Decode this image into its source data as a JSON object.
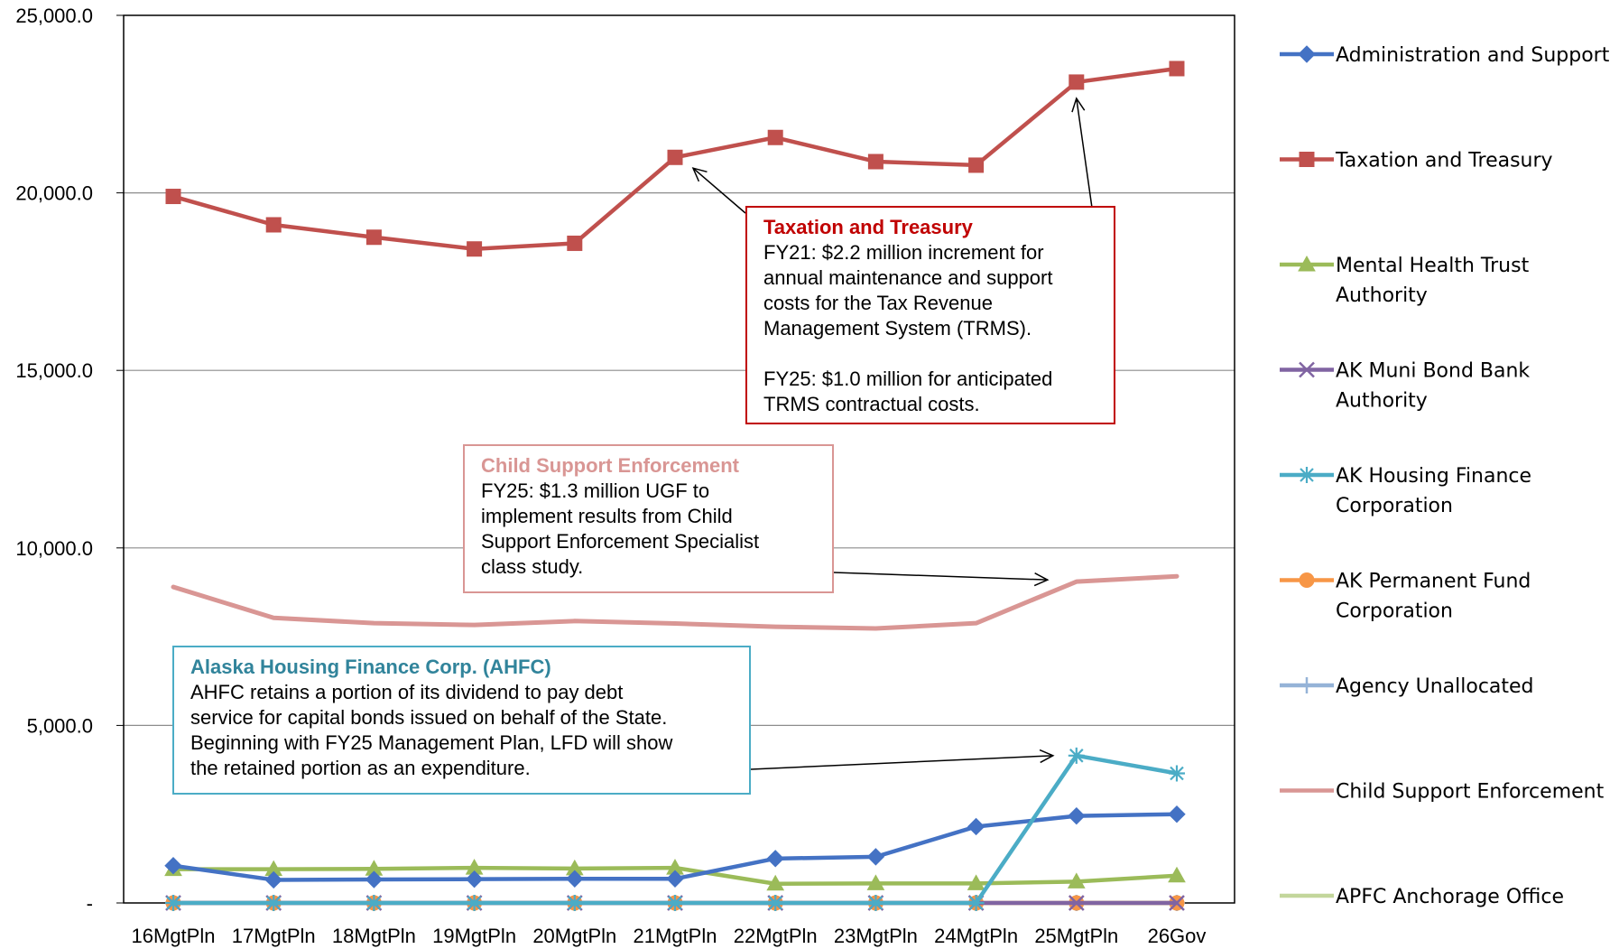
{
  "chart_data": {
    "type": "line",
    "categories": [
      "16MgtPln",
      "17MgtPln",
      "18MgtPln",
      "19MgtPln",
      "20MgtPln",
      "21MgtPln",
      "22MgtPln",
      "23MgtPln",
      "24MgtPln",
      "25MgtPln",
      "26Gov"
    ],
    "ylim": [
      0,
      25000
    ],
    "yticks": [
      {
        "value": 0,
        "label": "-"
      },
      {
        "value": 5000,
        "label": "5,000.0"
      },
      {
        "value": 10000,
        "label": "10,000.0"
      },
      {
        "value": 15000,
        "label": "15,000.0"
      },
      {
        "value": 20000,
        "label": "20,000.0"
      },
      {
        "value": 25000,
        "label": "25,000.0"
      }
    ],
    "grid": true,
    "legend_position": "right",
    "series": [
      {
        "name": "Administration and Support",
        "color": "#4472C4",
        "marker": "diamond",
        "values": [
          1050,
          650,
          660,
          670,
          680,
          680,
          1250,
          1300,
          2150,
          2450,
          2500
        ]
      },
      {
        "name": "Taxation and Treasury",
        "color": "#C0504D",
        "marker": "square",
        "values": [
          19900,
          19100,
          18750,
          18420,
          18580,
          21000,
          21560,
          20880,
          20780,
          23120,
          23500
        ]
      },
      {
        "name": "Mental Health Trust Authority",
        "color": "#9BBB59",
        "marker": "triangle",
        "values": [
          950,
          950,
          960,
          990,
          970,
          990,
          540,
          550,
          550,
          600,
          770
        ]
      },
      {
        "name": "AK Muni Bond Bank Authority",
        "color": "#8064A2",
        "marker": "x",
        "values": [
          0,
          0,
          0,
          0,
          0,
          0,
          0,
          0,
          0,
          0,
          0
        ]
      },
      {
        "name": "AK Housing Finance Corporation",
        "color": "#4BACC6",
        "marker": "star",
        "values": [
          0,
          0,
          0,
          0,
          0,
          0,
          0,
          0,
          0,
          4150,
          3650
        ]
      },
      {
        "name": "AK Permanent Fund Corporation",
        "color": "#F79646",
        "marker": "circle",
        "values": [
          0,
          0,
          0,
          0,
          0,
          0,
          0,
          0,
          0,
          0,
          0
        ]
      },
      {
        "name": "Agency Unallocated",
        "color": "#95B3D7",
        "marker": "plus",
        "values": [
          0,
          0,
          0,
          0,
          0,
          0,
          0,
          0,
          0,
          0,
          0
        ]
      },
      {
        "name": "Child Support Enforcement",
        "color": "#D99694",
        "marker": "none",
        "values": [
          8900,
          8030,
          7880,
          7830,
          7940,
          7870,
          7780,
          7730,
          7880,
          9050,
          9200
        ]
      },
      {
        "name": "APFC Anchorage Office",
        "color": "#C3D69B",
        "marker": "none",
        "values": [
          null,
          null,
          null,
          null,
          null,
          null,
          null,
          null,
          null,
          0,
          0
        ]
      }
    ],
    "legend_labels": [
      [
        "Administration and Support"
      ],
      [
        "Taxation and Treasury"
      ],
      [
        "Mental Health Trust",
        "Authority"
      ],
      [
        "AK Muni Bond Bank",
        "Authority"
      ],
      [
        "AK Housing Finance",
        "Corporation"
      ],
      [
        "AK Permanent Fund",
        "Corporation"
      ],
      [
        "Agency Unallocated"
      ],
      [
        "Child Support Enforcement"
      ],
      [
        "APFC Anchorage Office"
      ]
    ],
    "annotations": [
      {
        "id": "taxation",
        "title": "Taxation and Treasury",
        "title_color": "#C00000",
        "border_color": "#C00000",
        "lines": [
          "FY21: $2.2 million increment for",
          "annual maintenance and support",
          "costs for the Tax Revenue",
          "Management System (TRMS).",
          "",
          "FY25: $1.0 million for anticipated",
          "TRMS contractual costs."
        ]
      },
      {
        "id": "child-support",
        "title": "Child Support Enforcement",
        "title_color": "#D99694",
        "border_color": "#D99694",
        "lines": [
          "FY25: $1.3 million UGF to",
          "implement results from Child",
          "Support Enforcement Specialist",
          "class study."
        ]
      },
      {
        "id": "ahfc",
        "title": "Alaska Housing Finance Corp. (AHFC)",
        "title_color": "#31849B",
        "border_color": "#4BACC6",
        "lines": [
          "AHFC retains a portion of its dividend to pay debt",
          "service for capital bonds issued on behalf of the State.",
          "Beginning with FY25 Management Plan, LFD will show",
          "the retained portion as an expenditure."
        ]
      }
    ]
  }
}
